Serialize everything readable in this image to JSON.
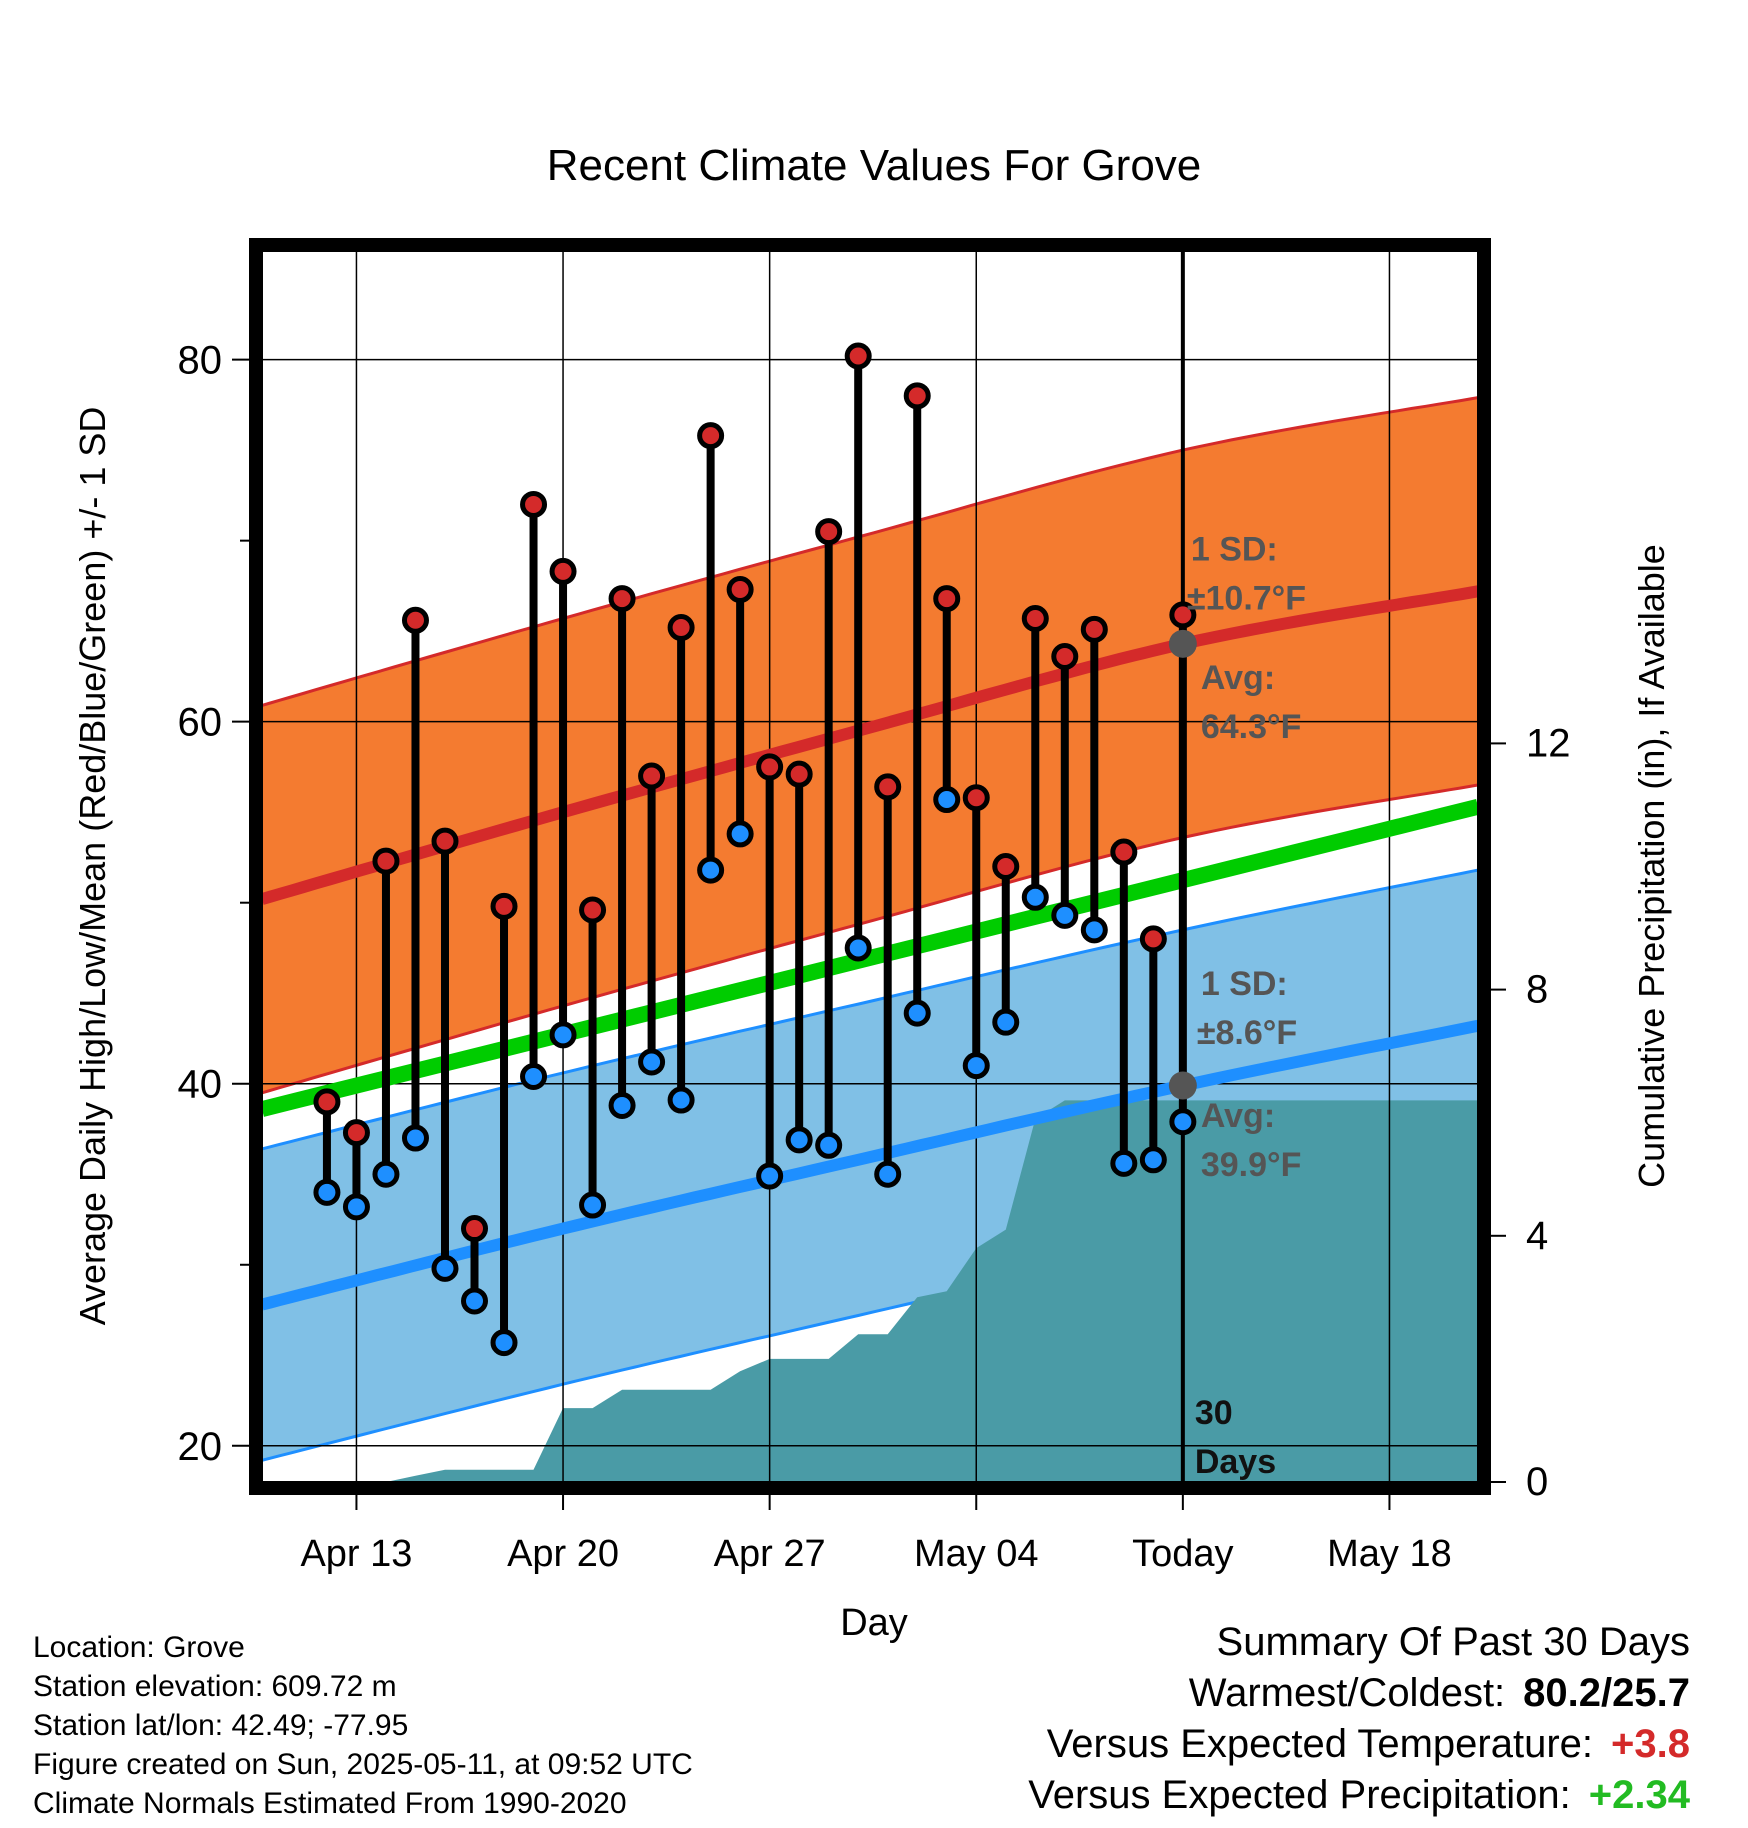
{
  "chart_data": {
    "type": "line",
    "title": "Recent Climate Values For Grove",
    "xlabel": "Day",
    "ylabel": "Average Daily High/Low/Mean (Red/Blue/Green) +/- 1 SD",
    "y2label": "Cumulative Precipitation (in), If Available",
    "ylim": [
      18,
      86
    ],
    "y2lim": [
      0,
      20
    ],
    "yticks": [
      20,
      40,
      60,
      80
    ],
    "y2ticks": [
      0,
      4,
      8,
      12
    ],
    "xticks": [
      {
        "day": 13,
        "label": "Apr 13"
      },
      {
        "day": 20,
        "label": "Apr 20"
      },
      {
        "day": 27,
        "label": "Apr 27"
      },
      {
        "day": 34,
        "label": "May 04"
      },
      {
        "day": 41,
        "label": "Today"
      },
      {
        "day": 48,
        "label": "May 18"
      }
    ],
    "colors": {
      "high": "#d42a2a",
      "low": "#1e8fff",
      "mean": "#00cc00",
      "high_band": "#f47b30",
      "low_band": "#80c0e6",
      "precip": "#4a9ba6"
    },
    "normal_mean": {
      "x": [
        9.8,
        51
      ],
      "y": [
        38.6,
        55.3
      ]
    },
    "normal_high": {
      "x": [
        9.8,
        20,
        30,
        41,
        51
      ],
      "y": [
        50.2,
        55.0,
        59.5,
        64.3,
        67.2
      ]
    },
    "normal_low": {
      "x": [
        9.8,
        20,
        30,
        41,
        51
      ],
      "y": [
        27.8,
        32.0,
        35.8,
        39.9,
        43.2
      ]
    },
    "sd_high": 10.7,
    "sd_low": 8.6,
    "daily": [
      {
        "day": 12,
        "high": 39.0,
        "low": 34.0
      },
      {
        "day": 13,
        "high": 37.3,
        "low": 33.2
      },
      {
        "day": 14,
        "high": 52.3,
        "low": 35.0
      },
      {
        "day": 15,
        "high": 65.6,
        "low": 37.0
      },
      {
        "day": 16,
        "high": 53.4,
        "low": 29.8
      },
      {
        "day": 17,
        "high": 32.0,
        "low": 28.0
      },
      {
        "day": 18,
        "high": 49.8,
        "low": 25.7
      },
      {
        "day": 19,
        "high": 72.0,
        "low": 40.4
      },
      {
        "day": 20,
        "high": 68.3,
        "low": 42.7
      },
      {
        "day": 21,
        "high": 49.6,
        "low": 33.3
      },
      {
        "day": 22,
        "high": 66.8,
        "low": 38.8
      },
      {
        "day": 23,
        "high": 57.0,
        "low": 41.2
      },
      {
        "day": 24,
        "high": 65.2,
        "low": 39.1
      },
      {
        "day": 25,
        "high": 75.8,
        "low": 51.8
      },
      {
        "day": 26,
        "high": 67.3,
        "low": 53.8
      },
      {
        "day": 27,
        "high": 57.5,
        "low": 34.9
      },
      {
        "day": 28,
        "high": 57.1,
        "low": 36.9
      },
      {
        "day": 29,
        "high": 70.5,
        "low": 36.6
      },
      {
        "day": 30,
        "high": 80.2,
        "low": 47.5
      },
      {
        "day": 31,
        "high": 56.4,
        "low": 35.0
      },
      {
        "day": 32,
        "high": 78.0,
        "low": 43.9
      },
      {
        "day": 33,
        "high": 66.8,
        "low": 55.7
      },
      {
        "day": 34,
        "high": 55.8,
        "low": 41.0
      },
      {
        "day": 35,
        "high": 52.0,
        "low": 43.4
      },
      {
        "day": 36,
        "high": 65.7,
        "low": 50.3
      },
      {
        "day": 37,
        "high": 63.6,
        "low": 49.3
      },
      {
        "day": 38,
        "high": 65.1,
        "low": 48.5
      },
      {
        "day": 39,
        "high": 52.8,
        "low": 35.6
      },
      {
        "day": 40,
        "high": 48.0,
        "low": 35.8
      },
      {
        "day": 41,
        "high": 65.9,
        "low": 37.9
      }
    ],
    "precip": {
      "x": [
        9.8,
        13,
        14,
        15,
        16,
        17,
        18,
        19,
        20,
        21,
        22,
        23,
        24,
        25,
        26,
        27,
        28,
        29,
        30,
        31,
        32,
        33,
        34,
        35,
        36,
        37,
        38,
        39,
        40,
        41,
        51
      ],
      "y": [
        0,
        0,
        0,
        0.1,
        0.2,
        0.2,
        0.2,
        0.2,
        1.2,
        1.2,
        1.5,
        1.5,
        1.5,
        1.5,
        1.8,
        2.0,
        2.0,
        2.0,
        2.4,
        2.4,
        3.0,
        3.1,
        3.8,
        4.1,
        5.9,
        6.2,
        6.2,
        6.2,
        6.2,
        6.2,
        6.2
      ]
    },
    "today_day": 41,
    "annotations": {
      "high_sd": "1 SD:",
      "high_sd_val": "±10.7°F",
      "high_avg": "Avg:",
      "high_avg_val": "64.3°F",
      "low_sd": "1 SD:",
      "low_sd_val": "±8.6°F",
      "low_avg": "Avg:",
      "low_avg_val": "39.9°F",
      "days_num": "30",
      "days_word": "Days"
    }
  },
  "footer": {
    "location": "Location: Grove",
    "elevation": "Station elevation: 609.72 m",
    "latlon": "Station lat/lon: 42.49; -77.95",
    "created": "Figure created on Sun, 2025-05-11, at 09:52 UTC",
    "normals": "Climate Normals Estimated From 1990-2020"
  },
  "summary": {
    "heading": "Summary Of Past 30 Days",
    "warm_cold_label": "Warmest/Coldest:",
    "warm_cold_value": "80.2/25.7",
    "temp_label": "Versus Expected Temperature:",
    "temp_value": "+3.8",
    "temp_color": "#d42a2a",
    "precip_label": "Versus Expected Precipitation:",
    "precip_value": "+2.34",
    "precip_color": "#22bb22"
  }
}
